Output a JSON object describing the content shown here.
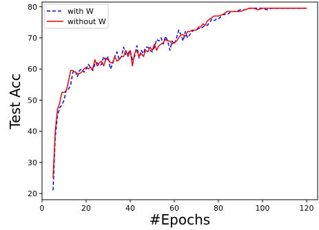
{
  "chart_data": {
    "type": "line",
    "title": "",
    "xlabel": "#Epochs",
    "ylabel": "Test Acc",
    "xlim": [
      0,
      125
    ],
    "ylim": [
      18,
      81.5
    ],
    "xticks": [
      0,
      20,
      40,
      60,
      80,
      100,
      120
    ],
    "yticks": [
      20,
      30,
      40,
      50,
      60,
      70,
      80
    ],
    "grid": false,
    "legend": "top-left",
    "series": [
      {
        "name": "with W",
        "color": "#0000ff",
        "dash": "dashed",
        "x": [
          5,
          6,
          7,
          8,
          9,
          10,
          11,
          12,
          13,
          14,
          15,
          16,
          17,
          18,
          19,
          20,
          21,
          22,
          23,
          24,
          25,
          26,
          27,
          28,
          29,
          30,
          31,
          32,
          33,
          34,
          35,
          36,
          37,
          38,
          39,
          40,
          41,
          42,
          43,
          44,
          45,
          46,
          47,
          48,
          49,
          50,
          51,
          52,
          53,
          54,
          55,
          56,
          57,
          58,
          59,
          60,
          61,
          62,
          63,
          64,
          65,
          66,
          67,
          68,
          69,
          70,
          71,
          72,
          73,
          74,
          75,
          76,
          77,
          78,
          79,
          80,
          82,
          84,
          86,
          88,
          90,
          92,
          94,
          96,
          98,
          100,
          102,
          104,
          106,
          108,
          110,
          112,
          114,
          116,
          118,
          120
        ],
        "y": [
          21,
          38,
          45,
          47.5,
          48.5,
          50,
          53.5,
          53.5,
          55,
          59,
          59.5,
          57.5,
          59.5,
          60,
          59,
          60,
          61.5,
          60.5,
          59.5,
          61.5,
          62,
          61,
          61.5,
          64,
          62.5,
          64,
          60,
          61.5,
          64,
          65.5,
          63,
          64,
          67,
          64.5,
          65,
          66,
          63,
          64,
          67.5,
          63.5,
          66,
          65,
          67,
          67,
          66,
          65.5,
          67,
          69.5,
          69,
          70,
          68,
          70.5,
          69,
          66,
          69,
          68,
          70,
          72.5,
          71,
          69,
          72,
          70,
          71,
          72,
          72.5,
          72.5,
          73,
          73,
          73.5,
          74,
          74,
          75,
          76,
          75.5,
          76,
          76,
          77.5,
          77.5,
          78.5,
          78.5,
          79,
          79,
          79.5,
          79.5,
          79.5,
          79.5,
          79,
          79.5,
          79.5,
          79.5,
          79.5,
          79.5,
          79.5,
          79.5,
          79.5,
          79.5
        ]
      },
      {
        "name": "without W",
        "color": "#ff0000",
        "dash": "solid",
        "x": [
          5,
          6,
          7,
          8,
          9,
          10,
          11,
          12,
          13,
          14,
          15,
          16,
          17,
          18,
          19,
          20,
          21,
          22,
          23,
          24,
          25,
          26,
          27,
          28,
          29,
          30,
          31,
          32,
          33,
          34,
          35,
          36,
          37,
          38,
          39,
          40,
          41,
          42,
          43,
          44,
          45,
          46,
          47,
          48,
          49,
          50,
          51,
          52,
          53,
          54,
          55,
          56,
          57,
          58,
          59,
          60,
          61,
          62,
          63,
          64,
          65,
          66,
          67,
          68,
          69,
          70,
          71,
          72,
          73,
          74,
          75,
          76,
          77,
          78,
          79,
          80,
          82,
          84,
          86,
          88,
          90,
          92,
          94,
          96,
          98,
          100,
          102,
          104,
          106,
          108,
          110,
          112,
          114,
          116,
          118,
          120
        ],
        "y": [
          25,
          40,
          47,
          49,
          52.5,
          52.5,
          53,
          56,
          59.5,
          59.5,
          59,
          58.5,
          58.5,
          59,
          60,
          60.5,
          60,
          60.5,
          60,
          63,
          61,
          62,
          62.5,
          61,
          63.5,
          63,
          62,
          62,
          64,
          62.5,
          63,
          64,
          64,
          66,
          64,
          66,
          61,
          65,
          66,
          64,
          65,
          64,
          66,
          65.5,
          67,
          66,
          68,
          66,
          67.5,
          68,
          68.5,
          69.5,
          69,
          69,
          68,
          68.5,
          69,
          70,
          71,
          71,
          70.5,
          72,
          72,
          72.5,
          72.5,
          72.5,
          73.5,
          73.5,
          74.5,
          74,
          75.5,
          76,
          76.5,
          77,
          77,
          77,
          77.5,
          78.5,
          78.5,
          78.5,
          78.5,
          79,
          79.5,
          79.5,
          79,
          79.5,
          79.5,
          79.5,
          79.5,
          79.5,
          79.5,
          79.5,
          79.5,
          79.5,
          79.5,
          79.5
        ]
      }
    ]
  }
}
